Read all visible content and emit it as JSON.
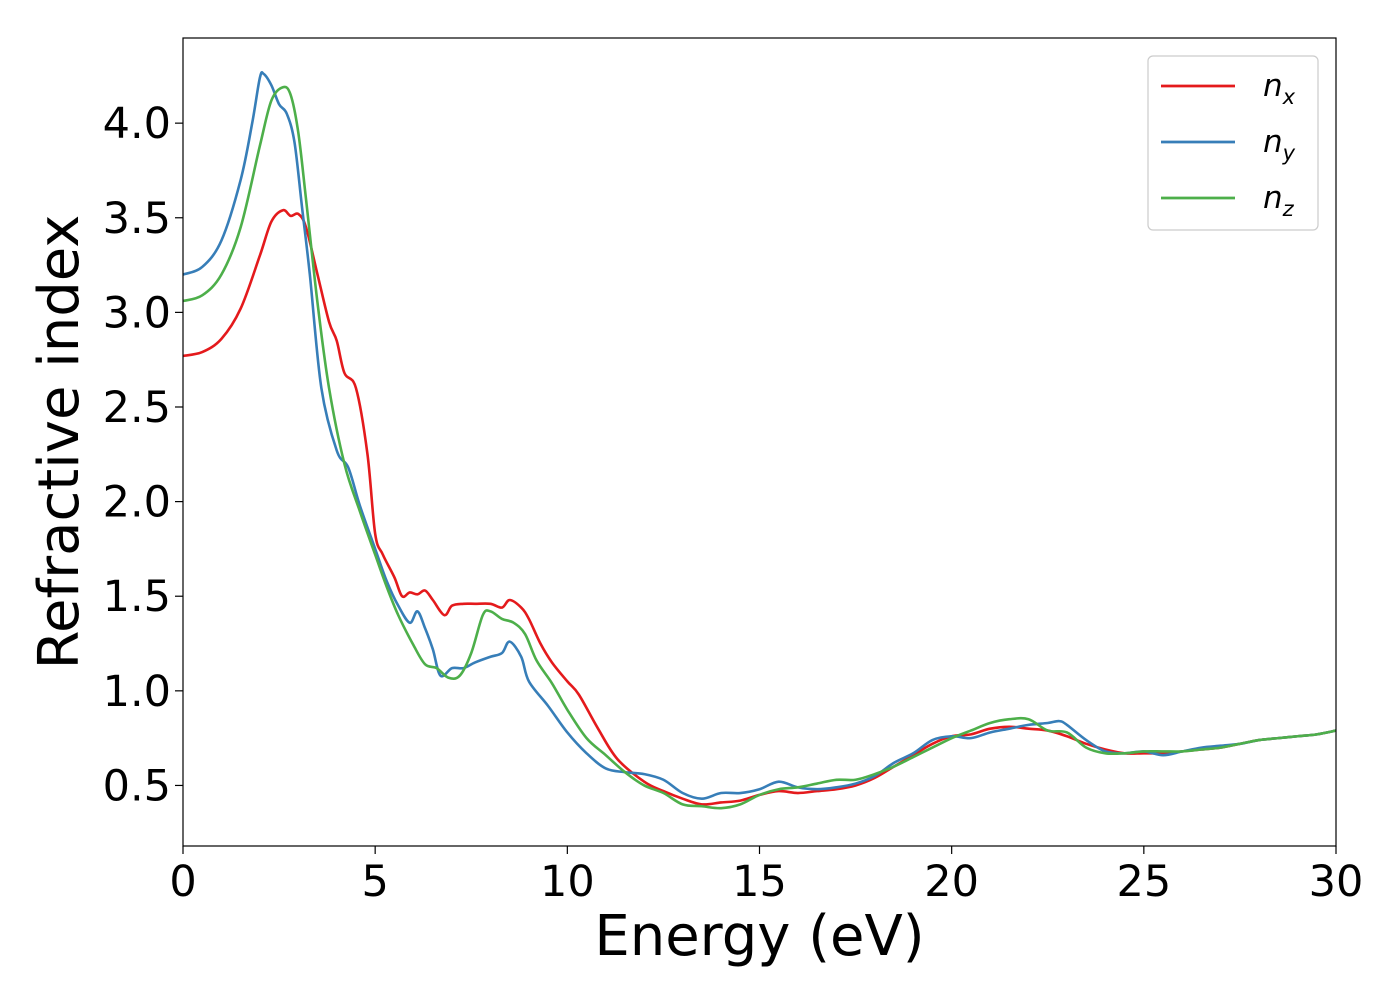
{
  "chart_data": {
    "type": "line",
    "title": "",
    "xlabel": "Energy (eV)",
    "ylabel": "Refractive index",
    "xlim": [
      0,
      30
    ],
    "ylim": [
      0.18,
      4.45
    ],
    "x_ticks": [
      0,
      5,
      10,
      15,
      20,
      25,
      30
    ],
    "x_tick_labels": [
      "0",
      "5",
      "10",
      "15",
      "20",
      "25",
      "30"
    ],
    "y_ticks": [
      0.5,
      1.0,
      1.5,
      2.0,
      2.5,
      3.0,
      3.5,
      4.0
    ],
    "y_tick_labels": [
      "0.5",
      "1.0",
      "1.5",
      "2.0",
      "2.5",
      "3.0",
      "3.5",
      "4.0"
    ],
    "grid": false,
    "legend_position": "top-right",
    "series": [
      {
        "name": "n_x",
        "legend_base": "n",
        "legend_sub": "x",
        "color": "#e41a1c",
        "points": [
          [
            0,
            2.77
          ],
          [
            0.5,
            2.79
          ],
          [
            1.0,
            2.86
          ],
          [
            1.5,
            3.02
          ],
          [
            2.0,
            3.3
          ],
          [
            2.3,
            3.48
          ],
          [
            2.6,
            3.54
          ],
          [
            2.8,
            3.51
          ],
          [
            3.0,
            3.52
          ],
          [
            3.2,
            3.45
          ],
          [
            3.5,
            3.2
          ],
          [
            3.8,
            2.95
          ],
          [
            4.0,
            2.85
          ],
          [
            4.2,
            2.68
          ],
          [
            4.5,
            2.6
          ],
          [
            4.8,
            2.25
          ],
          [
            5.0,
            1.83
          ],
          [
            5.2,
            1.72
          ],
          [
            5.5,
            1.6
          ],
          [
            5.7,
            1.5
          ],
          [
            5.9,
            1.52
          ],
          [
            6.1,
            1.51
          ],
          [
            6.3,
            1.53
          ],
          [
            6.5,
            1.48
          ],
          [
            6.8,
            1.4
          ],
          [
            7.0,
            1.45
          ],
          [
            7.3,
            1.46
          ],
          [
            7.6,
            1.46
          ],
          [
            8.0,
            1.46
          ],
          [
            8.3,
            1.44
          ],
          [
            8.5,
            1.48
          ],
          [
            8.8,
            1.44
          ],
          [
            9.0,
            1.38
          ],
          [
            9.3,
            1.25
          ],
          [
            9.6,
            1.15
          ],
          [
            10.0,
            1.05
          ],
          [
            10.3,
            0.98
          ],
          [
            10.8,
            0.8
          ],
          [
            11.3,
            0.64
          ],
          [
            12.0,
            0.52
          ],
          [
            12.5,
            0.47
          ],
          [
            13.0,
            0.43
          ],
          [
            13.5,
            0.4
          ],
          [
            14.0,
            0.41
          ],
          [
            14.5,
            0.42
          ],
          [
            15.0,
            0.45
          ],
          [
            15.5,
            0.47
          ],
          [
            16.0,
            0.46
          ],
          [
            16.5,
            0.47
          ],
          [
            17.0,
            0.48
          ],
          [
            17.5,
            0.5
          ],
          [
            18.0,
            0.54
          ],
          [
            18.5,
            0.6
          ],
          [
            19.0,
            0.66
          ],
          [
            19.5,
            0.72
          ],
          [
            20.0,
            0.76
          ],
          [
            20.5,
            0.77
          ],
          [
            21.0,
            0.8
          ],
          [
            21.5,
            0.81
          ],
          [
            22.0,
            0.8
          ],
          [
            22.5,
            0.79
          ],
          [
            23.0,
            0.76
          ],
          [
            23.5,
            0.72
          ],
          [
            24.0,
            0.69
          ],
          [
            24.5,
            0.67
          ],
          [
            25.0,
            0.67
          ],
          [
            25.5,
            0.67
          ],
          [
            26.0,
            0.68
          ],
          [
            26.5,
            0.69
          ],
          [
            27.0,
            0.7
          ],
          [
            27.5,
            0.72
          ],
          [
            28.0,
            0.74
          ],
          [
            28.5,
            0.75
          ],
          [
            29.0,
            0.76
          ],
          [
            29.5,
            0.77
          ],
          [
            30.0,
            0.79
          ]
        ]
      },
      {
        "name": "n_y",
        "legend_base": "n",
        "legend_sub": "y",
        "color": "#377eb8",
        "points": [
          [
            0,
            3.2
          ],
          [
            0.5,
            3.24
          ],
          [
            1.0,
            3.38
          ],
          [
            1.5,
            3.7
          ],
          [
            1.8,
            4.0
          ],
          [
            2.0,
            4.24
          ],
          [
            2.1,
            4.26
          ],
          [
            2.3,
            4.2
          ],
          [
            2.5,
            4.1
          ],
          [
            2.7,
            4.05
          ],
          [
            2.9,
            3.9
          ],
          [
            3.1,
            3.55
          ],
          [
            3.3,
            3.2
          ],
          [
            3.6,
            2.6
          ],
          [
            4.0,
            2.27
          ],
          [
            4.3,
            2.18
          ],
          [
            4.6,
            1.98
          ],
          [
            5.0,
            1.75
          ],
          [
            5.3,
            1.58
          ],
          [
            5.6,
            1.45
          ],
          [
            5.9,
            1.36
          ],
          [
            6.1,
            1.42
          ],
          [
            6.3,
            1.33
          ],
          [
            6.5,
            1.22
          ],
          [
            6.7,
            1.08
          ],
          [
            7.0,
            1.12
          ],
          [
            7.3,
            1.12
          ],
          [
            7.6,
            1.15
          ],
          [
            8.0,
            1.18
          ],
          [
            8.3,
            1.2
          ],
          [
            8.5,
            1.26
          ],
          [
            8.8,
            1.18
          ],
          [
            9.0,
            1.05
          ],
          [
            9.5,
            0.92
          ],
          [
            10.0,
            0.78
          ],
          [
            10.5,
            0.67
          ],
          [
            11.0,
            0.59
          ],
          [
            11.5,
            0.57
          ],
          [
            12.0,
            0.56
          ],
          [
            12.5,
            0.53
          ],
          [
            13.0,
            0.46
          ],
          [
            13.5,
            0.43
          ],
          [
            14.0,
            0.46
          ],
          [
            14.5,
            0.46
          ],
          [
            15.0,
            0.48
          ],
          [
            15.5,
            0.52
          ],
          [
            16.0,
            0.49
          ],
          [
            16.5,
            0.48
          ],
          [
            17.0,
            0.49
          ],
          [
            17.5,
            0.51
          ],
          [
            18.0,
            0.55
          ],
          [
            18.5,
            0.62
          ],
          [
            19.0,
            0.67
          ],
          [
            19.5,
            0.74
          ],
          [
            20.0,
            0.76
          ],
          [
            20.5,
            0.75
          ],
          [
            21.0,
            0.78
          ],
          [
            21.5,
            0.8
          ],
          [
            22.0,
            0.82
          ],
          [
            22.5,
            0.83
          ],
          [
            22.8,
            0.84
          ],
          [
            23.0,
            0.82
          ],
          [
            23.5,
            0.74
          ],
          [
            24.0,
            0.68
          ],
          [
            24.5,
            0.67
          ],
          [
            25.0,
            0.68
          ],
          [
            25.5,
            0.66
          ],
          [
            26.0,
            0.68
          ],
          [
            26.5,
            0.7
          ],
          [
            27.0,
            0.71
          ],
          [
            27.5,
            0.72
          ],
          [
            28.0,
            0.74
          ],
          [
            28.5,
            0.75
          ],
          [
            29.0,
            0.76
          ],
          [
            29.5,
            0.77
          ],
          [
            30.0,
            0.79
          ]
        ]
      },
      {
        "name": "n_z",
        "legend_base": "n",
        "legend_sub": "z",
        "color": "#4daf4a",
        "points": [
          [
            0,
            3.06
          ],
          [
            0.5,
            3.09
          ],
          [
            1.0,
            3.2
          ],
          [
            1.5,
            3.45
          ],
          [
            2.0,
            3.88
          ],
          [
            2.3,
            4.12
          ],
          [
            2.6,
            4.19
          ],
          [
            2.8,
            4.15
          ],
          [
            3.0,
            3.95
          ],
          [
            3.2,
            3.6
          ],
          [
            3.5,
            3.05
          ],
          [
            3.8,
            2.6
          ],
          [
            4.2,
            2.2
          ],
          [
            4.6,
            1.95
          ],
          [
            5.0,
            1.72
          ],
          [
            5.3,
            1.55
          ],
          [
            5.6,
            1.4
          ],
          [
            6.0,
            1.24
          ],
          [
            6.3,
            1.14
          ],
          [
            6.6,
            1.12
          ],
          [
            6.9,
            1.07
          ],
          [
            7.2,
            1.08
          ],
          [
            7.5,
            1.2
          ],
          [
            7.8,
            1.4
          ],
          [
            8.0,
            1.42
          ],
          [
            8.3,
            1.38
          ],
          [
            8.6,
            1.36
          ],
          [
            8.9,
            1.3
          ],
          [
            9.2,
            1.16
          ],
          [
            9.6,
            1.04
          ],
          [
            10.0,
            0.9
          ],
          [
            10.5,
            0.75
          ],
          [
            11.0,
            0.66
          ],
          [
            11.5,
            0.57
          ],
          [
            12.0,
            0.5
          ],
          [
            12.5,
            0.46
          ],
          [
            13.0,
            0.4
          ],
          [
            13.5,
            0.39
          ],
          [
            14.0,
            0.38
          ],
          [
            14.5,
            0.4
          ],
          [
            15.0,
            0.45
          ],
          [
            15.5,
            0.48
          ],
          [
            16.0,
            0.49
          ],
          [
            16.5,
            0.51
          ],
          [
            17.0,
            0.53
          ],
          [
            17.5,
            0.53
          ],
          [
            18.0,
            0.56
          ],
          [
            18.5,
            0.6
          ],
          [
            19.0,
            0.65
          ],
          [
            19.5,
            0.7
          ],
          [
            20.0,
            0.75
          ],
          [
            20.5,
            0.79
          ],
          [
            21.0,
            0.83
          ],
          [
            21.5,
            0.85
          ],
          [
            22.0,
            0.85
          ],
          [
            22.5,
            0.79
          ],
          [
            23.0,
            0.78
          ],
          [
            23.5,
            0.7
          ],
          [
            24.0,
            0.67
          ],
          [
            24.5,
            0.67
          ],
          [
            25.0,
            0.68
          ],
          [
            25.5,
            0.68
          ],
          [
            26.0,
            0.68
          ],
          [
            26.5,
            0.69
          ],
          [
            27.0,
            0.7
          ],
          [
            27.5,
            0.72
          ],
          [
            28.0,
            0.74
          ],
          [
            28.5,
            0.75
          ],
          [
            29.0,
            0.76
          ],
          [
            29.5,
            0.77
          ],
          [
            30.0,
            0.79
          ]
        ]
      }
    ]
  }
}
